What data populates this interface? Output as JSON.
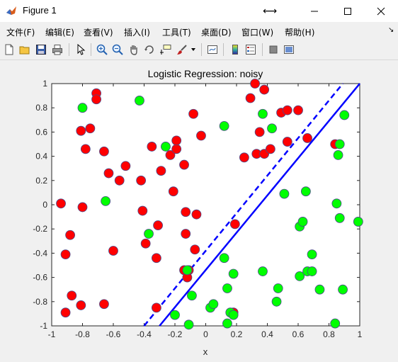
{
  "window": {
    "title": "Figure 1"
  },
  "menu": {
    "items": [
      "文件(F)",
      "编辑(E)",
      "查看(V)",
      "插入(I)",
      "工具(T)",
      "桌面(D)",
      "窗口(W)",
      "帮助(H)"
    ],
    "overflow": "↘"
  },
  "toolbar": {
    "icons": [
      "new-figure-icon",
      "open-file-icon",
      "save-icon",
      "print-icon",
      "edit-plot-arrow-icon",
      "zoom-in-icon",
      "zoom-out-icon",
      "pan-hand-icon",
      "rotate-3d-icon",
      "data-cursor-icon",
      "brush-icon",
      "link-plot-icon",
      "colorbar-icon",
      "legend-icon",
      "hide-plot-tools-icon",
      "show-plot-tools-icon"
    ]
  },
  "chart_data": {
    "type": "scatter",
    "title": "Logistic Regression: noisy",
    "xlabel": "x",
    "ylabel": "",
    "xlim": [
      -1,
      1
    ],
    "ylim": [
      -1,
      1
    ],
    "xticks": [
      "-1",
      "-0.8",
      "-0.6",
      "-0.4",
      "-0.2",
      "0",
      "0.2",
      "0.4",
      "0.6",
      "0.8",
      "1"
    ],
    "yticks": [
      "1",
      "0.8",
      "0.6",
      "0.4",
      "0.2",
      "0",
      "-0.2",
      "-0.4",
      "-0.6",
      "-0.8",
      "-1"
    ],
    "colors": {
      "red": "#ff0000",
      "green": "#00ff00",
      "line": "#0000ff",
      "marker_edge": "#4a4a8a"
    },
    "series": [
      {
        "color": "red",
        "points": [
          [
            -0.71,
            0.92
          ],
          [
            -0.71,
            0.87
          ],
          [
            -0.75,
            0.63
          ],
          [
            -0.81,
            0.61
          ],
          [
            -0.78,
            0.46
          ],
          [
            -0.66,
            0.44
          ],
          [
            -0.63,
            0.26
          ],
          [
            -0.52,
            0.32
          ],
          [
            -0.56,
            0.2
          ],
          [
            -0.94,
            0.01
          ],
          [
            -0.8,
            -0.02
          ],
          [
            -0.88,
            -0.25
          ],
          [
            -0.91,
            -0.41
          ],
          [
            -0.6,
            -0.38
          ],
          [
            -0.87,
            -0.75
          ],
          [
            -0.81,
            -0.83
          ],
          [
            -0.91,
            -0.89
          ],
          [
            -0.66,
            -0.82
          ],
          [
            -0.42,
            0.2
          ],
          [
            -0.41,
            -0.05
          ],
          [
            -0.35,
            0.48
          ],
          [
            -0.29,
            0.28
          ],
          [
            -0.23,
            0.41
          ],
          [
            -0.19,
            0.46
          ],
          [
            -0.19,
            0.53
          ],
          [
            -0.14,
            0.33
          ],
          [
            -0.21,
            0.11
          ],
          [
            -0.08,
            0.75
          ],
          [
            -0.03,
            0.57
          ],
          [
            -0.13,
            -0.06
          ],
          [
            -0.06,
            -0.08
          ],
          [
            -0.31,
            -0.17
          ],
          [
            -0.13,
            -0.24
          ],
          [
            -0.39,
            -0.32
          ],
          [
            -0.32,
            -0.44
          ],
          [
            -0.07,
            -0.37
          ],
          [
            -0.14,
            -0.54
          ],
          [
            -0.11,
            -0.54
          ],
          [
            -0.12,
            -0.6
          ],
          [
            -0.32,
            -0.85
          ],
          [
            0.19,
            -0.16
          ],
          [
            0.18,
            -0.89
          ],
          [
            0.32,
            1.0
          ],
          [
            0.38,
            0.95
          ],
          [
            0.29,
            0.88
          ],
          [
            0.35,
            0.6
          ],
          [
            0.33,
            0.42
          ],
          [
            0.38,
            0.42
          ],
          [
            0.42,
            0.46
          ],
          [
            0.49,
            0.76
          ],
          [
            0.53,
            0.78
          ],
          [
            0.6,
            0.78
          ],
          [
            0.53,
            0.52
          ],
          [
            0.66,
            0.55
          ],
          [
            0.25,
            0.39
          ],
          [
            0.84,
            0.5
          ]
        ]
      },
      {
        "color": "green",
        "points": [
          [
            -0.8,
            0.8
          ],
          [
            -0.43,
            0.86
          ],
          [
            -0.26,
            0.48
          ],
          [
            -0.65,
            0.03
          ],
          [
            -0.37,
            -0.24
          ],
          [
            -0.12,
            -0.54
          ],
          [
            -0.09,
            -0.75
          ],
          [
            -0.2,
            -0.91
          ],
          [
            -0.11,
            -0.99
          ],
          [
            0.03,
            -0.85
          ],
          [
            0.05,
            -0.82
          ],
          [
            0.12,
            -0.44
          ],
          [
            0.14,
            -0.69
          ],
          [
            0.18,
            -0.57
          ],
          [
            0.16,
            -0.89
          ],
          [
            0.18,
            -0.91
          ],
          [
            0.14,
            -0.98
          ],
          [
            0.12,
            0.65
          ],
          [
            0.37,
            0.75
          ],
          [
            0.43,
            0.63
          ],
          [
            0.51,
            0.09
          ],
          [
            0.65,
            0.11
          ],
          [
            0.61,
            -0.18
          ],
          [
            0.63,
            -0.14
          ],
          [
            0.37,
            -0.55
          ],
          [
            0.47,
            -0.69
          ],
          [
            0.46,
            -0.8
          ],
          [
            0.61,
            -0.59
          ],
          [
            0.66,
            -0.55
          ],
          [
            0.69,
            -0.55
          ],
          [
            0.69,
            -0.41
          ],
          [
            0.74,
            -0.7
          ],
          [
            0.84,
            -0.98
          ],
          [
            0.87,
            0.5
          ],
          [
            0.86,
            0.41
          ],
          [
            0.9,
            0.74
          ],
          [
            0.85,
            0.01
          ],
          [
            0.87,
            -0.11
          ],
          [
            0.89,
            -0.7
          ],
          [
            0.99,
            -0.14
          ]
        ]
      }
    ],
    "lines": [
      {
        "style": "solid",
        "from": [
          -0.3,
          -1.0
        ],
        "to": [
          1.0,
          1.0
        ]
      },
      {
        "style": "dashed",
        "from": [
          -0.4,
          -1.0
        ],
        "to": [
          0.89,
          1.0
        ]
      }
    ]
  }
}
